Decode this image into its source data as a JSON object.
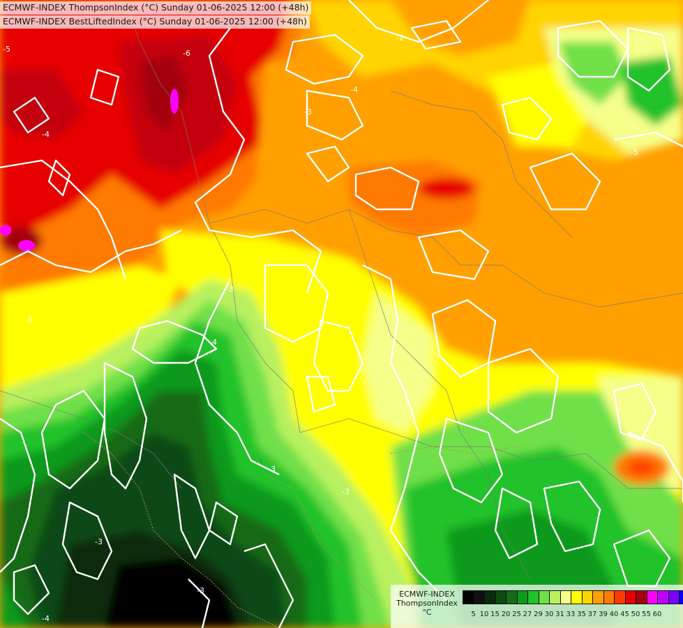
{
  "header": {
    "line1": "ECMWF-INDEX ThompsonIndex (°C) Sunday 01-06-2025 12:00 (+48h)",
    "line2": "ECMWF-INDEX BestLiftedIndex (°C) Sunday 01-06-2025 12:00 (+48h)"
  },
  "legend": {
    "title_line1": "ECMWF-INDEX",
    "title_line2": "ThompsonIndex",
    "title_line3": "°C",
    "ticks": [
      "5",
      "10",
      "15",
      "20",
      "25",
      "27",
      "29",
      "30",
      "31",
      "33",
      "35",
      "37",
      "39",
      "40",
      "45",
      "50",
      "55",
      "60"
    ],
    "colors": [
      "#000000",
      "#111111",
      "#0a2a0a",
      "#0e4a14",
      "#156b19",
      "#0e9a1a",
      "#22c22a",
      "#6fe04a",
      "#b8f060",
      "#f5ff8a",
      "#ffff00",
      "#ffd400",
      "#ffa000",
      "#ff7a00",
      "#ff3a00",
      "#e60000",
      "#a30010",
      "#ff00ff",
      "#c000ff",
      "#7a00ff",
      "#0000ff"
    ]
  },
  "contour_labels": [
    "-6",
    "-5",
    "-4",
    "-4",
    "-3",
    "-3",
    "-3",
    "-3",
    "-4",
    "-5",
    "-5",
    "-4",
    "-3",
    "-2",
    "-3"
  ]
}
